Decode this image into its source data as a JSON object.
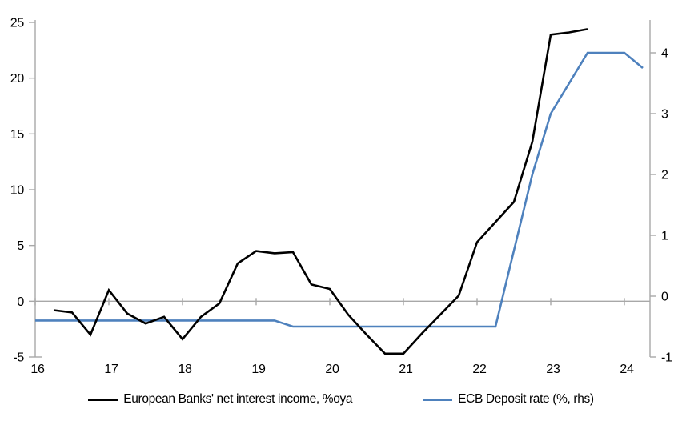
{
  "chart_data": {
    "type": "line",
    "title": "",
    "xlabel": "",
    "ylabel_left": "",
    "ylabel_right": "",
    "grid": "zero-line-only",
    "legend_position": "bottom",
    "x_axis": {
      "ticks": [
        16,
        17,
        18,
        19,
        20,
        21,
        22,
        23,
        24
      ],
      "range": [
        16,
        24.35
      ]
    },
    "left_axis": {
      "ticks": [
        25,
        20,
        15,
        10,
        5,
        0,
        -5
      ],
      "range": [
        -5,
        25
      ]
    },
    "right_axis": {
      "ticks": [
        4,
        3,
        2,
        1,
        0,
        -1
      ],
      "range": [
        -1,
        4.5
      ]
    },
    "series": [
      {
        "name": "European Banks' net interest income, %oya",
        "axis": "left",
        "color": "#000000",
        "x": [
          16.25,
          16.5,
          16.75,
          17,
          17.25,
          17.5,
          17.75,
          18,
          18.25,
          18.5,
          18.75,
          19,
          19.25,
          19.5,
          19.75,
          20,
          20.25,
          20.5,
          20.75,
          21,
          21.25,
          21.5,
          21.75,
          22,
          22.25,
          22.5,
          22.75,
          23,
          23.25,
          23.5
        ],
        "values": [
          -0.8,
          -1.0,
          -3.0,
          1.0,
          -1.1,
          -2.0,
          -1.4,
          -3.4,
          -1.4,
          -0.2,
          3.4,
          4.5,
          4.3,
          4.4,
          1.5,
          1.1,
          -1.2,
          -3.0,
          -4.7,
          -4.7,
          -2.9,
          -1.2,
          0.5,
          5.3,
          7.1,
          8.9,
          14.3,
          23.9,
          24.1,
          24.4
        ]
      },
      {
        "name": "ECB Deposit rate (%, rhs)",
        "axis": "right",
        "color": "#4E81BD",
        "x": [
          16,
          16.25,
          16.5,
          16.75,
          17,
          17.25,
          17.5,
          17.75,
          18,
          18.25,
          18.5,
          18.75,
          19,
          19.25,
          19.5,
          19.75,
          20,
          20.25,
          20.5,
          20.75,
          21,
          21.25,
          21.5,
          21.75,
          22,
          22.25,
          22.5,
          22.75,
          23,
          23.25,
          23.5,
          23.75,
          24,
          24.25
        ],
        "values": [
          -0.4,
          -0.4,
          -0.4,
          -0.4,
          -0.4,
          -0.4,
          -0.4,
          -0.4,
          -0.4,
          -0.4,
          -0.4,
          -0.4,
          -0.4,
          -0.4,
          -0.5,
          -0.5,
          -0.5,
          -0.5,
          -0.5,
          -0.5,
          -0.5,
          -0.5,
          -0.5,
          -0.5,
          -0.5,
          -0.5,
          0.75,
          2.0,
          3.0,
          3.5,
          4.0,
          4.0,
          4.0,
          3.75
        ]
      }
    ]
  },
  "colors": {
    "axis": "#A8A8A8",
    "zero_line": "#A8A8A8",
    "background": "#FFFFFF",
    "text": "#000000"
  }
}
